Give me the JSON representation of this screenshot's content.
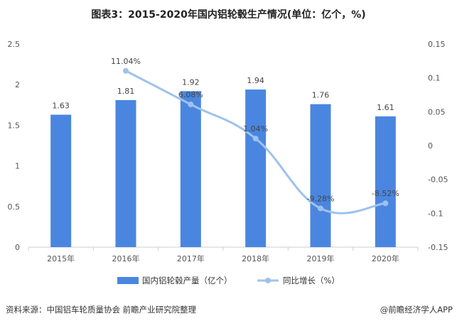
{
  "title": "图表3：2015-2020年国内铝轮毂生产情况(单位：亿个，%)",
  "footer": {
    "source": "资料来源：中国铝车轮质量协会 前瞻产业研究院整理",
    "brand": "@前瞻经济学人APP"
  },
  "colors": {
    "bar": "#4a86e0",
    "line": "#9fc2ec",
    "axis": "#cfcfcf"
  },
  "chart_data": {
    "type": "bar",
    "categories": [
      "2015年",
      "2016年",
      "2017年",
      "2018年",
      "2019年",
      "2020年"
    ],
    "series": [
      {
        "name": "国内铝轮毂产量（亿个）",
        "type": "bar",
        "axis": "left",
        "values": [
          1.63,
          1.81,
          1.92,
          1.94,
          1.76,
          1.61
        ],
        "labels": [
          "1.63",
          "1.81",
          "1.92",
          "1.94",
          "1.76",
          "1.61"
        ]
      },
      {
        "name": "同比增长（%）",
        "type": "line",
        "axis": "right",
        "values": [
          null,
          0.1104,
          0.0608,
          0.0104,
          -0.0928,
          -0.0852
        ],
        "labels": [
          "",
          "11.04%",
          "6.08%",
          "1.04%",
          "-9.28%",
          "-8.52%"
        ]
      }
    ],
    "left_axis": {
      "ylim": [
        0,
        2.5
      ],
      "ticks": [
        0,
        0.5,
        1,
        1.5,
        2,
        2.5
      ],
      "tick_labels": [
        "0",
        "0.5",
        "1",
        "1.5",
        "2",
        "2.5"
      ]
    },
    "right_axis": {
      "ylim": [
        -0.15,
        0.15
      ],
      "ticks": [
        -0.15,
        -0.1,
        -0.05,
        0,
        0.05,
        0.1,
        0.15
      ],
      "tick_labels": [
        "-0.15",
        "-0.1",
        "-0.05",
        "0",
        "0.05",
        "0.1",
        "0.15"
      ]
    },
    "grid": false,
    "legend": "bottom-center"
  }
}
